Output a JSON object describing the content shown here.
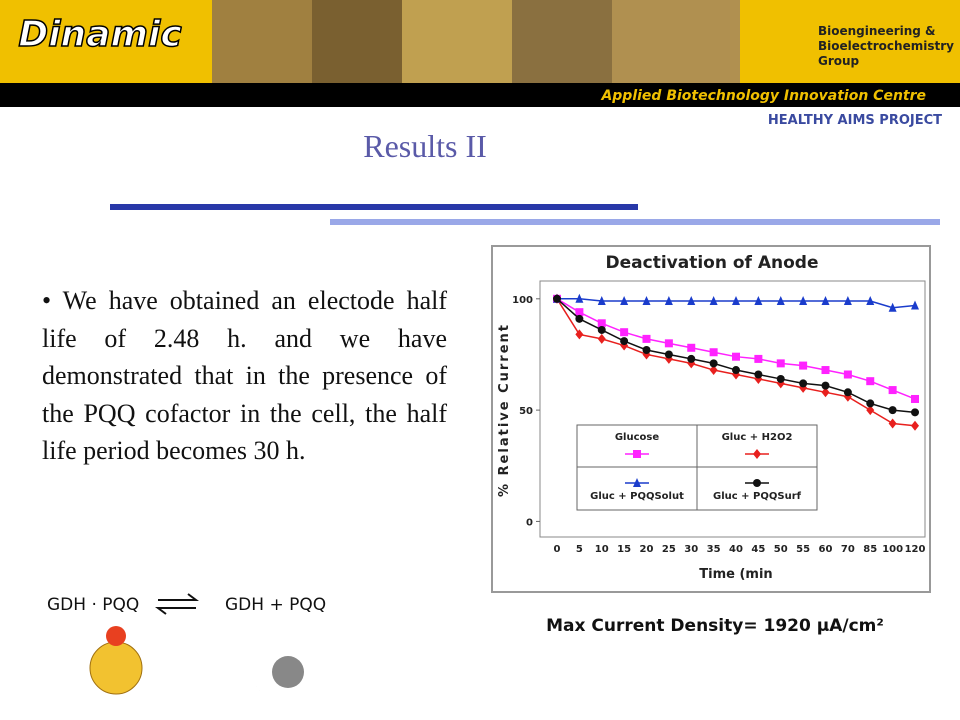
{
  "header": {
    "logo": "Dinamic",
    "group": [
      "Bioengineering &",
      "Bioelectrochemistry",
      "Group"
    ],
    "centre": "Applied Biotechnology Innovation Centre",
    "project": "HEALTHY AIMS PROJECT"
  },
  "title": "Results II",
  "bullet": "We have obtained an electode half life of 2.48 h. and we have demonstrated that in the presence of the PQQ cofactor in the cell, the half life period becomes 30 h.",
  "equation": {
    "left": "GDH · PQQ",
    "right": "GDH + PQQ"
  },
  "chart_data": {
    "type": "line",
    "title": "Deactivation of Anode",
    "y_label": "% Relative Current",
    "x_label": "Time (min",
    "categories": [
      "0",
      "5",
      "10",
      "15",
      "20",
      "25",
      "30",
      "35",
      "40",
      "45",
      "50",
      "55",
      "60",
      "70",
      "85",
      "100",
      "120"
    ],
    "ylim": [
      -7,
      108
    ],
    "yticks": [
      0,
      50,
      100
    ],
    "series": [
      {
        "name": "Glucose",
        "color": "#ff22ff",
        "marker": "square",
        "values": [
          100,
          94,
          89,
          85,
          82,
          80,
          78,
          76,
          74,
          73,
          71,
          70,
          68,
          66,
          63,
          59,
          55
        ]
      },
      {
        "name": "Gluc + H2O2",
        "color": "#e8201e",
        "marker": "diamond",
        "values": [
          100,
          84,
          82,
          79,
          75,
          73,
          71,
          68,
          66,
          64,
          62,
          60,
          58,
          56,
          50,
          44,
          43
        ]
      },
      {
        "name": "Gluc + PQQSolut",
        "color": "#1a3ccc",
        "marker": "triangle",
        "values": [
          100,
          100,
          99,
          99,
          99,
          99,
          99,
          99,
          99,
          99,
          99,
          99,
          99,
          99,
          99,
          96,
          97
        ]
      },
      {
        "name": "Gluc + PQQSurf",
        "color": "#111111",
        "marker": "circle",
        "values": [
          100,
          91,
          86,
          81,
          77,
          75,
          73,
          71,
          68,
          66,
          64,
          62,
          61,
          58,
          53,
          50,
          49
        ]
      }
    ]
  },
  "caption": "Max Current Density= 1920 µA/cm²"
}
